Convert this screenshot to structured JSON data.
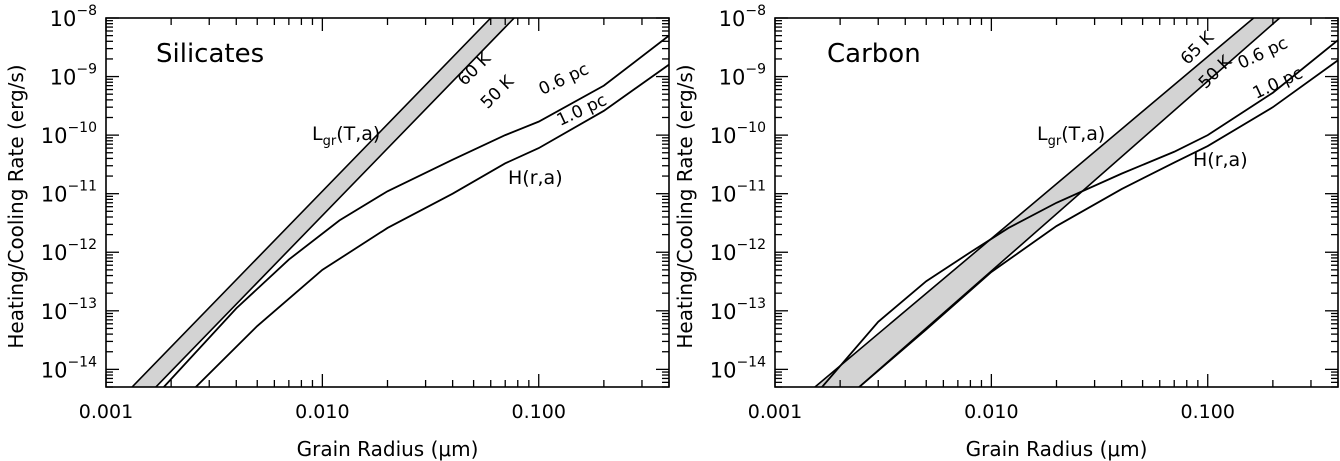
{
  "colors": {
    "band_fill": "#d3d3d3",
    "line": "#000000"
  },
  "chart_data": [
    {
      "type": "line",
      "title": "Silicates",
      "xlabel": "Grain Radius (μm)",
      "ylabel": "Heating/Cooling Rate (erg/s)",
      "xscale": "log",
      "yscale": "log",
      "xlim": [
        0.001,
        0.4
      ],
      "ylim": [
        5e-15,
        1e-08
      ],
      "xticks": [
        {
          "value": 0.001,
          "label": "0.001"
        },
        {
          "value": 0.01,
          "label": "0.010"
        },
        {
          "value": 0.1,
          "label": "0.100"
        }
      ],
      "yticks": [
        {
          "value": 1e-14,
          "mantissa": "10",
          "exponent": "−14"
        },
        {
          "value": 1e-13,
          "mantissa": "10",
          "exponent": "−13"
        },
        {
          "value": 1e-12,
          "mantissa": "10",
          "exponent": "−12"
        },
        {
          "value": 1e-11,
          "mantissa": "10",
          "exponent": "−11"
        },
        {
          "value": 1e-10,
          "mantissa": "10",
          "exponent": "−10"
        },
        {
          "value": 1e-09,
          "mantissa": "10",
          "exponent": "−9"
        },
        {
          "value": 1e-08,
          "mantissa": "10",
          "exponent": "−8"
        }
      ],
      "band": {
        "label_main": "L",
        "label_sub": "gr",
        "label_rest": "(T,a)",
        "upper": {
          "label": "60 K",
          "x": [
            0.00132,
            0.06
          ],
          "y": [
            5e-15,
            1e-08
          ]
        },
        "lower": {
          "label": "50 K",
          "x": [
            0.0017,
            0.077
          ],
          "y": [
            5e-15,
            1e-08
          ]
        }
      },
      "curves_label": "H(r,a)",
      "curves": [
        {
          "label": "0.6 pc",
          "x": [
            0.00185,
            0.004,
            0.007,
            0.012,
            0.02,
            0.04,
            0.07,
            0.1,
            0.2,
            0.4
          ],
          "y": [
            5e-15,
            1.1e-13,
            7.5e-13,
            3.5e-12,
            1.1e-11,
            3.8e-11,
            1e-10,
            1.7e-10,
            7e-10,
            5e-09
          ]
        },
        {
          "label": "1.0 pc",
          "x": [
            0.0026,
            0.005,
            0.01,
            0.02,
            0.04,
            0.07,
            0.1,
            0.2,
            0.4
          ],
          "y": [
            5e-15,
            5.5e-14,
            5e-13,
            2.6e-12,
            1e-11,
            3.3e-11,
            6e-11,
            2.6e-10,
            1.6e-09
          ]
        }
      ]
    },
    {
      "type": "line",
      "title": "Carbon",
      "xlabel": "Grain Radius (μm)",
      "ylabel": "Heating/Cooling Rate (erg/s)",
      "xscale": "log",
      "yscale": "log",
      "xlim": [
        0.001,
        0.4
      ],
      "ylim": [
        5e-15,
        1e-08
      ],
      "xticks": [
        {
          "value": 0.001,
          "label": "0.001"
        },
        {
          "value": 0.01,
          "label": "0.010"
        },
        {
          "value": 0.1,
          "label": "0.100"
        }
      ],
      "yticks": [
        {
          "value": 1e-14,
          "mantissa": "10",
          "exponent": "−14"
        },
        {
          "value": 1e-13,
          "mantissa": "10",
          "exponent": "−13"
        },
        {
          "value": 1e-12,
          "mantissa": "10",
          "exponent": "−12"
        },
        {
          "value": 1e-11,
          "mantissa": "10",
          "exponent": "−11"
        },
        {
          "value": 1e-10,
          "mantissa": "10",
          "exponent": "−10"
        },
        {
          "value": 1e-09,
          "mantissa": "10",
          "exponent": "−9"
        },
        {
          "value": 1e-08,
          "mantissa": "10",
          "exponent": "−8"
        }
      ],
      "band": {
        "label_main": "L",
        "label_sub": "gr",
        "label_rest": "(T,a)",
        "upper": {
          "label": "65 K",
          "x": [
            0.00153,
            0.163
          ],
          "y": [
            5e-15,
            1e-08
          ]
        },
        "lower": {
          "label": "50 K",
          "x": [
            0.00245,
            0.215
          ],
          "y": [
            5e-15,
            1e-08
          ]
        }
      },
      "curves_label": "H(r,a)",
      "curves": [
        {
          "label": "0.6 pc",
          "x": [
            0.00165,
            0.003,
            0.005,
            0.008,
            0.012,
            0.02,
            0.04,
            0.07,
            0.1,
            0.2,
            0.4
          ],
          "y": [
            5e-15,
            6.5e-14,
            3.2e-13,
            1e-12,
            2.6e-12,
            7e-12,
            2.2e-11,
            5.2e-11,
            1e-10,
            5.3e-10,
            4.2e-09
          ]
        },
        {
          "label": "1.0 pc",
          "x": [
            0.00245,
            0.005,
            0.01,
            0.02,
            0.04,
            0.07,
            0.1,
            0.2,
            0.4
          ],
          "y": [
            5e-15,
            4.8e-14,
            4.6e-13,
            2.8e-12,
            1.2e-11,
            3.4e-11,
            6.5e-11,
            3e-10,
            1.9e-09
          ]
        }
      ]
    }
  ]
}
